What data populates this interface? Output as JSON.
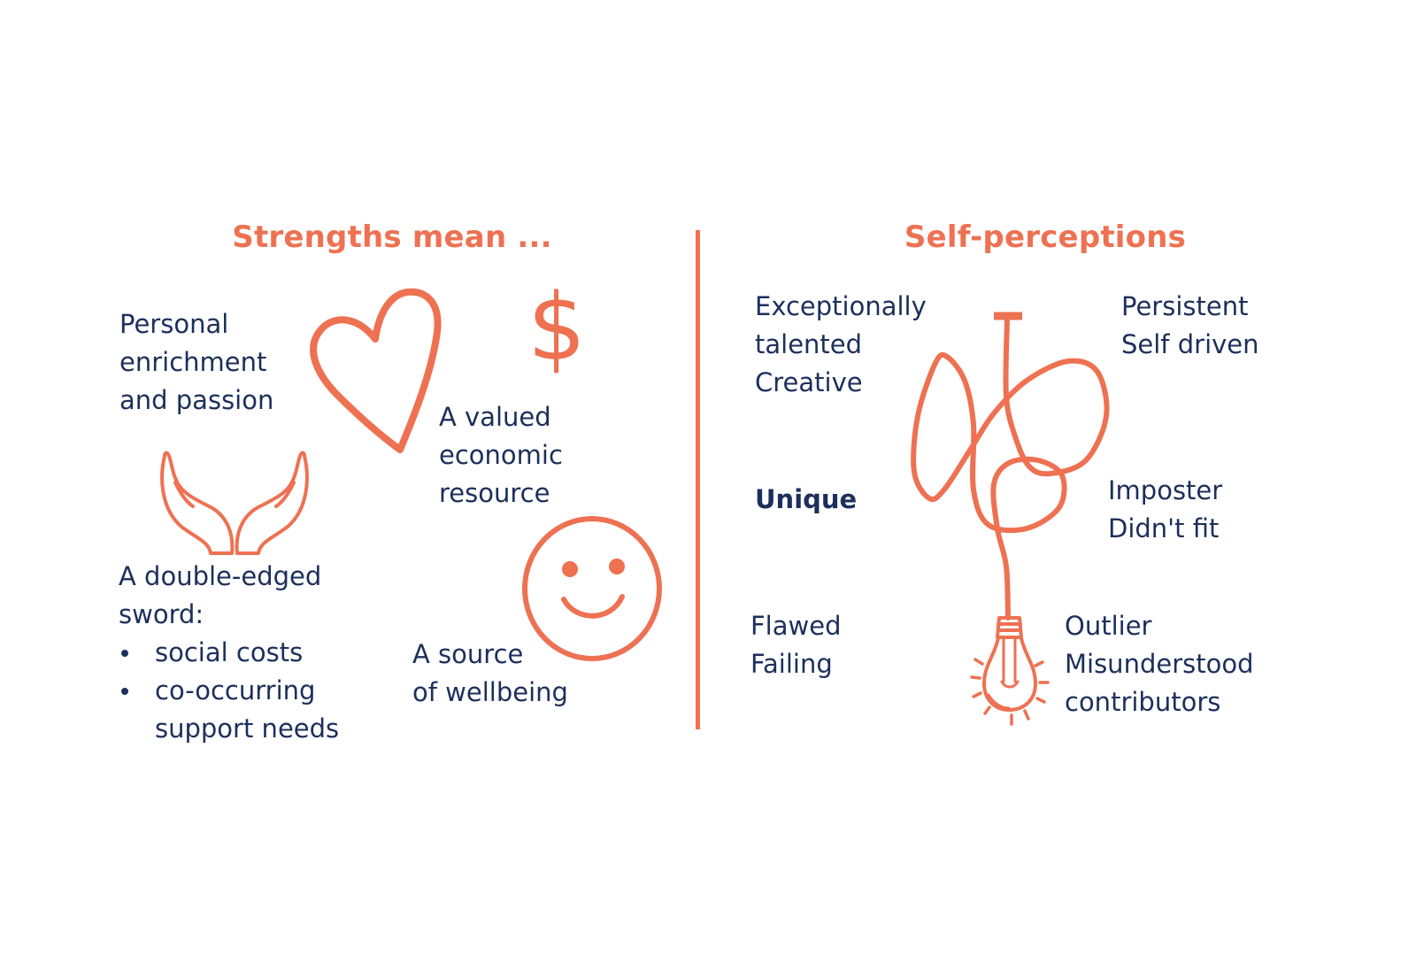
{
  "colors": {
    "accent": "#ee7152",
    "text": "#1c2f5c",
    "background": "#ffffff"
  },
  "left": {
    "title": "Strengths mean ...",
    "personal": [
      "Personal",
      "enrichment",
      "and passion"
    ],
    "economic": [
      "A valued",
      "economic",
      "resource"
    ],
    "sword": [
      "A double-edged",
      "sword:"
    ],
    "sword_bullets": [
      "social costs",
      "co-occurring",
      "support needs"
    ],
    "wellbeing": [
      "A source",
      "of wellbeing"
    ],
    "dollar_symbol": "$",
    "icons": [
      "heart-icon",
      "dollar-icon",
      "open-hands-icon",
      "smiley-face-icon"
    ]
  },
  "right": {
    "title": "Self-perceptions",
    "talented": [
      "Exceptionally",
      "talented",
      "Creative"
    ],
    "persistent": [
      "Persistent",
      "Self driven"
    ],
    "unique": "Unique",
    "imposter": [
      "Imposter",
      "Didn't fit"
    ],
    "flawed": [
      "Flawed",
      "Failing"
    ],
    "outlier": [
      "Outlier",
      "Misunderstood",
      "contributors"
    ],
    "icons": [
      "tangled-cord-lightbulb-icon"
    ]
  }
}
